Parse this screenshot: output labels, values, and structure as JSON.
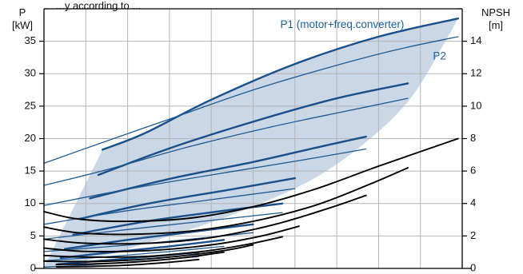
{
  "chart_data": {
    "type": "line",
    "title": "",
    "top_note": "...y according to ...",
    "left_axis": {
      "label_line1": "P",
      "label_line2": "[kW]",
      "ylim": [
        0,
        40
      ],
      "ticks": [
        0,
        5,
        10,
        15,
        20,
        25,
        30,
        35
      ]
    },
    "right_axis": {
      "label_line1": "NPSH",
      "label_line2": "[m]",
      "ylim": [
        0,
        16
      ],
      "ticks": [
        0,
        2,
        4,
        6,
        8,
        10,
        12,
        14
      ]
    },
    "xlim": [
      0,
      1
    ],
    "grid": true,
    "shaded_region": {
      "color": "#c9d7e6",
      "upper": [
        [
          0.14,
          18.3
        ],
        [
          0.24,
          20.8
        ],
        [
          0.4,
          26.0
        ],
        [
          0.6,
          31.5
        ],
        [
          0.8,
          35.7
        ],
        [
          0.99,
          38.5
        ]
      ],
      "lower": [
        [
          0.96,
          35.0
        ],
        [
          0.88,
          26.5
        ],
        [
          0.78,
          20.0
        ],
        [
          0.65,
          14.0
        ],
        [
          0.5,
          9.5
        ],
        [
          0.35,
          6.0
        ],
        [
          0.2,
          3.0
        ],
        [
          0.06,
          0.5
        ],
        [
          0.0,
          0.2
        ]
      ]
    },
    "annotations": [
      {
        "text": "P1 (motor+freq.converter)",
        "x": 0.565,
        "y": 37.5,
        "color": "#1e5f9e"
      },
      {
        "text": "P2",
        "x": 0.93,
        "y": 32.6,
        "color": "#1e5f9e"
      }
    ],
    "series": [
      {
        "group": "P1",
        "axis": "left",
        "points": [
          [
            0.14,
            18.3
          ],
          [
            0.24,
            20.8
          ],
          [
            0.4,
            26.0
          ],
          [
            0.6,
            31.5
          ],
          [
            0.8,
            35.7
          ],
          [
            0.99,
            38.5
          ]
        ]
      },
      {
        "group": "P1",
        "axis": "left",
        "points": [
          [
            0.13,
            14.4
          ],
          [
            0.3,
            18.5
          ],
          [
            0.5,
            22.6
          ],
          [
            0.7,
            26.2
          ],
          [
            0.87,
            28.5
          ]
        ]
      },
      {
        "group": "P1",
        "axis": "left",
        "points": [
          [
            0.11,
            10.8
          ],
          [
            0.3,
            13.8
          ],
          [
            0.5,
            16.4
          ],
          [
            0.65,
            18.6
          ],
          [
            0.77,
            20.3
          ]
        ]
      },
      {
        "group": "P1",
        "axis": "left",
        "points": [
          [
            0.09,
            7.7
          ],
          [
            0.25,
            10.0
          ],
          [
            0.45,
            12.2
          ],
          [
            0.6,
            13.9
          ]
        ]
      },
      {
        "group": "P1",
        "axis": "left",
        "points": [
          [
            0.07,
            5.2
          ],
          [
            0.25,
            7.3
          ],
          [
            0.42,
            8.8
          ],
          [
            0.57,
            10.0
          ]
        ]
      },
      {
        "group": "P1",
        "axis": "left",
        "points": [
          [
            0.05,
            3.0
          ],
          [
            0.2,
            4.4
          ],
          [
            0.35,
            5.6
          ],
          [
            0.5,
            6.8
          ]
        ]
      },
      {
        "group": "P1",
        "axis": "left",
        "points": [
          [
            0.04,
            1.6
          ],
          [
            0.15,
            2.4
          ],
          [
            0.3,
            3.4
          ],
          [
            0.43,
            4.4
          ]
        ]
      },
      {
        "group": "P1",
        "axis": "left",
        "points": [
          [
            0.03,
            0.6
          ],
          [
            0.12,
            1.1
          ],
          [
            0.25,
            1.8
          ],
          [
            0.37,
            2.5
          ]
        ]
      },
      {
        "group": "P2",
        "axis": "left",
        "points": [
          [
            0.0,
            16.2
          ],
          [
            0.1,
            18.5
          ],
          [
            0.3,
            23.0
          ],
          [
            0.5,
            27.5
          ],
          [
            0.7,
            31.3
          ],
          [
            0.85,
            33.8
          ],
          [
            0.99,
            35.7
          ]
        ]
      },
      {
        "group": "P2",
        "axis": "left",
        "points": [
          [
            0.0,
            12.8
          ],
          [
            0.15,
            15.2
          ],
          [
            0.35,
            18.8
          ],
          [
            0.55,
            21.9
          ],
          [
            0.72,
            24.2
          ],
          [
            0.87,
            26.2
          ]
        ]
      },
      {
        "group": "P2",
        "axis": "left",
        "points": [
          [
            0.0,
            9.7
          ],
          [
            0.2,
            12.2
          ],
          [
            0.4,
            14.4
          ],
          [
            0.6,
            16.5
          ],
          [
            0.77,
            18.4
          ]
        ]
      },
      {
        "group": "P2",
        "axis": "left",
        "points": [
          [
            0.0,
            6.8
          ],
          [
            0.2,
            8.9
          ],
          [
            0.4,
            10.6
          ],
          [
            0.6,
            12.3
          ]
        ]
      },
      {
        "group": "P2",
        "axis": "left",
        "points": [
          [
            0.0,
            4.5
          ],
          [
            0.2,
            6.0
          ],
          [
            0.4,
            7.4
          ],
          [
            0.57,
            8.6
          ]
        ]
      },
      {
        "group": "P2",
        "axis": "left",
        "points": [
          [
            0.0,
            2.6
          ],
          [
            0.2,
            3.6
          ],
          [
            0.35,
            4.5
          ],
          [
            0.5,
            5.5
          ]
        ]
      },
      {
        "group": "P2",
        "axis": "left",
        "points": [
          [
            0.0,
            1.2
          ],
          [
            0.15,
            1.8
          ],
          [
            0.3,
            2.6
          ],
          [
            0.43,
            3.4
          ]
        ]
      },
      {
        "group": "P2",
        "axis": "left",
        "points": [
          [
            0.0,
            0.2
          ],
          [
            0.12,
            0.6
          ],
          [
            0.25,
            1.2
          ],
          [
            0.37,
            1.8
          ]
        ]
      },
      {
        "group": "NPSH",
        "axis": "right",
        "points": [
          [
            0.0,
            3.5
          ],
          [
            0.08,
            3.05
          ],
          [
            0.2,
            2.9
          ],
          [
            0.35,
            3.1
          ],
          [
            0.5,
            3.8
          ],
          [
            0.65,
            4.9
          ],
          [
            0.8,
            6.3
          ],
          [
            0.99,
            8.0
          ]
        ]
      },
      {
        "group": "NPSH",
        "axis": "right",
        "points": [
          [
            0.0,
            2.55
          ],
          [
            0.08,
            2.2
          ],
          [
            0.2,
            2.1
          ],
          [
            0.35,
            2.3
          ],
          [
            0.5,
            2.9
          ],
          [
            0.65,
            3.9
          ],
          [
            0.78,
            5.2
          ],
          [
            0.87,
            6.2
          ]
        ]
      },
      {
        "group": "NPSH",
        "axis": "right",
        "points": [
          [
            0.0,
            1.8
          ],
          [
            0.1,
            1.55
          ],
          [
            0.25,
            1.55
          ],
          [
            0.4,
            1.9
          ],
          [
            0.55,
            2.7
          ],
          [
            0.68,
            3.7
          ],
          [
            0.77,
            4.5
          ]
        ]
      },
      {
        "group": "NPSH",
        "axis": "right",
        "points": [
          [
            0.0,
            1.25
          ],
          [
            0.1,
            1.05
          ],
          [
            0.25,
            1.1
          ],
          [
            0.4,
            1.45
          ],
          [
            0.52,
            2.0
          ],
          [
            0.61,
            2.6
          ]
        ]
      },
      {
        "group": "NPSH",
        "axis": "right",
        "points": [
          [
            0.0,
            0.8
          ],
          [
            0.1,
            0.7
          ],
          [
            0.25,
            0.75
          ],
          [
            0.38,
            1.05
          ],
          [
            0.48,
            1.45
          ],
          [
            0.57,
            1.95
          ]
        ]
      },
      {
        "group": "NPSH",
        "axis": "right",
        "points": [
          [
            0.0,
            0.45
          ],
          [
            0.1,
            0.42
          ],
          [
            0.2,
            0.5
          ],
          [
            0.32,
            0.75
          ],
          [
            0.43,
            1.1
          ],
          [
            0.5,
            1.45
          ]
        ]
      },
      {
        "group": "NPSH",
        "axis": "right",
        "points": [
          [
            0.03,
            0.25
          ],
          [
            0.12,
            0.28
          ],
          [
            0.22,
            0.4
          ],
          [
            0.33,
            0.65
          ],
          [
            0.43,
            1.0
          ]
        ]
      },
      {
        "group": "NPSH",
        "axis": "right",
        "points": [
          [
            0.03,
            0.1
          ],
          [
            0.1,
            0.12
          ],
          [
            0.2,
            0.2
          ],
          [
            0.3,
            0.38
          ],
          [
            0.37,
            0.55
          ]
        ]
      }
    ],
    "colors": {
      "p1": "#1b4f8a",
      "p2": "#1e5a94",
      "npsh": "#000000",
      "grid": "#b5b5b5",
      "axis": "#000000",
      "fill": "#c9d7e6",
      "annotation": "#1e5f9e"
    }
  }
}
